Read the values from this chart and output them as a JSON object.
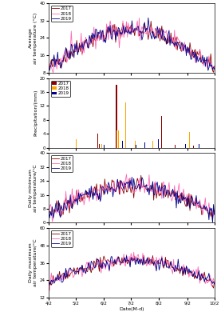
{
  "colors_2017": "#8B0000",
  "colors_2018": "#FF69B4",
  "colors_2019": "#00008B",
  "bar_2017": "#8B0000",
  "bar_2018": "#FFA500",
  "bar_2019": "#00008B",
  "xlabel": "Date(M-d)",
  "xtick_labels": [
    "4/2",
    "5/2",
    "6/2",
    "7/2",
    "8/2",
    "9/2",
    "10/2"
  ],
  "panel1_ylabel": "Average\nair temperature (°C)",
  "panel2_ylabel": "Precipitation/(mm)",
  "panel3_ylabel": "Daily minimum\nair temperature/°C",
  "panel4_ylabel": "Daily maximum\nair temperature/°C",
  "panel1_ylim": [
    8,
    40
  ],
  "panel1_yticks": [
    8,
    16,
    24,
    32,
    40
  ],
  "panel2_ylim": [
    0,
    20
  ],
  "panel2_yticks": [
    0,
    4,
    8,
    12,
    16,
    20
  ],
  "panel3_ylim": [
    0,
    40
  ],
  "panel3_yticks": [
    0,
    8,
    16,
    24,
    32,
    40
  ],
  "panel4_ylim": [
    12,
    60
  ],
  "panel4_yticks": [
    12,
    24,
    36,
    48,
    60
  ],
  "n_days": 184
}
